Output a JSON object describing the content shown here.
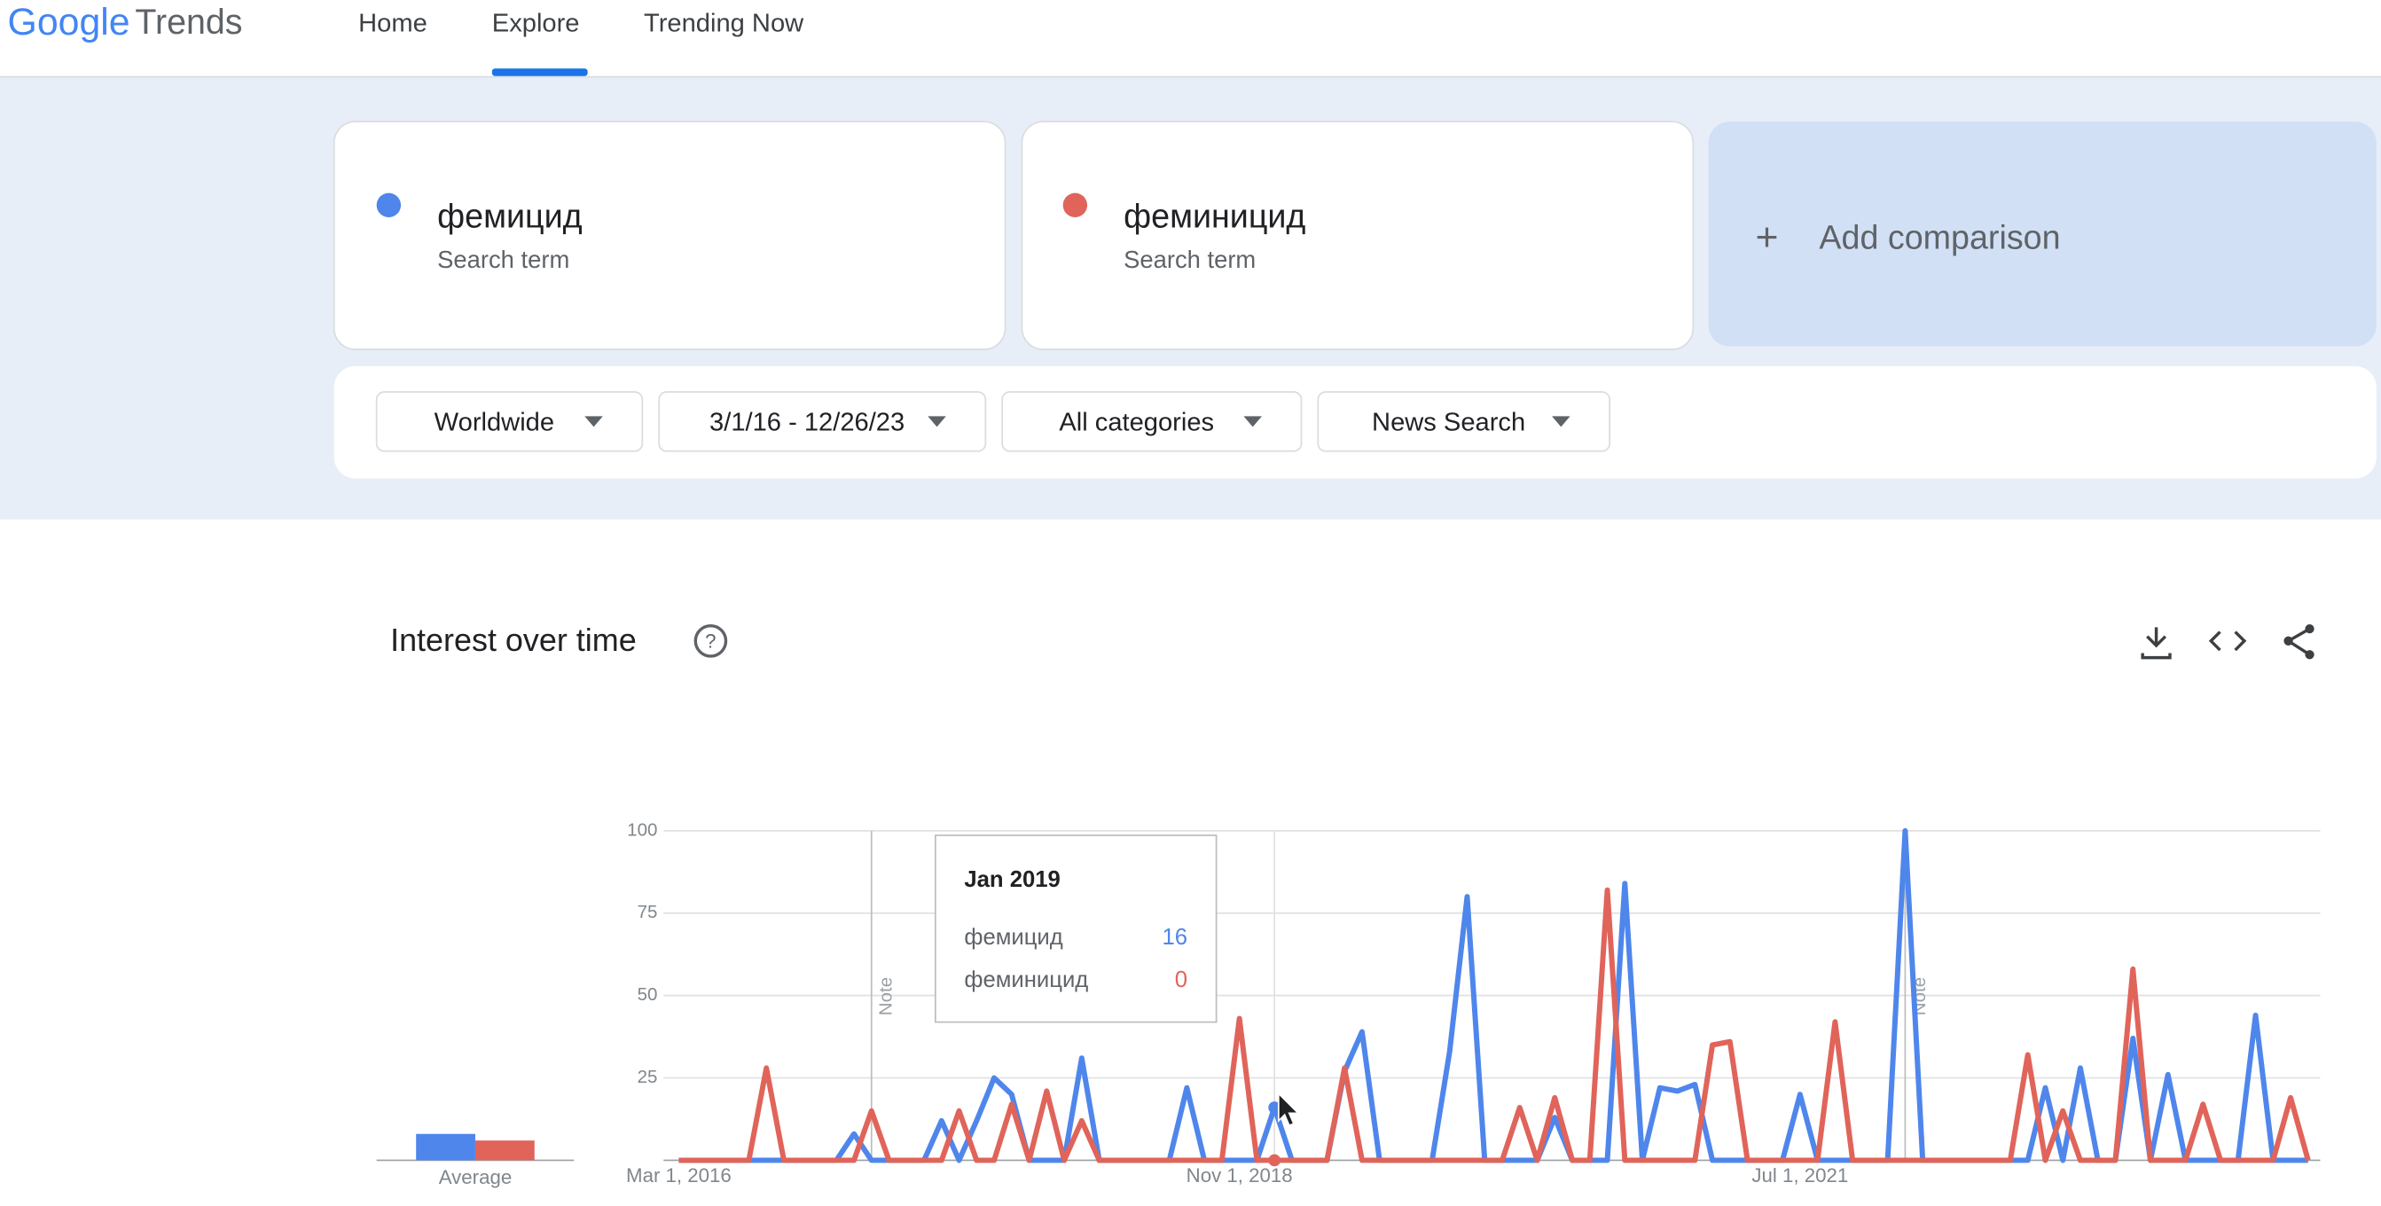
{
  "header": {
    "logo_google": "Google",
    "logo_trends": "Trends",
    "nav": [
      "Home",
      "Explore",
      "Trending Now"
    ]
  },
  "search_terms": [
    {
      "term": "фемицид",
      "type": "Search term"
    },
    {
      "term": "феминицид",
      "type": "Search term"
    }
  ],
  "add_comparison": "Add comparison",
  "filters": [
    "Worldwide",
    "3/1/16 - 12/26/23",
    "All categories",
    "News Search"
  ],
  "chart_data": {
    "type": "line",
    "title": "Interest over time",
    "categories": [
      "Mar 2016",
      "Apr 2016",
      "May 2016",
      "Jun 2016",
      "Jul 2016",
      "Aug 2016",
      "Sep 2016",
      "Oct 2016",
      "Nov 2016",
      "Dec 2016",
      "Jan 2017",
      "Feb 2017",
      "Mar 2017",
      "Apr 2017",
      "May 2017",
      "Jun 2017",
      "Jul 2017",
      "Aug 2017",
      "Sep 2017",
      "Oct 2017",
      "Nov 2017",
      "Dec 2017",
      "Jan 2018",
      "Feb 2018",
      "Mar 2018",
      "Apr 2018",
      "May 2018",
      "Jun 2018",
      "Jul 2018",
      "Aug 2018",
      "Sep 2018",
      "Oct 2018",
      "Nov 2018",
      "Dec 2018",
      "Jan 2019",
      "Feb 2019",
      "Mar 2019",
      "Apr 2019",
      "May 2019",
      "Jun 2019",
      "Jul 2019",
      "Aug 2019",
      "Sep 2019",
      "Oct 2019",
      "Nov 2019",
      "Dec 2019",
      "Jan 2020",
      "Feb 2020",
      "Mar 2020",
      "Apr 2020",
      "May 2020",
      "Jun 2020",
      "Jul 2020",
      "Aug 2020",
      "Sep 2020",
      "Oct 2020",
      "Nov 2020",
      "Dec 2020",
      "Jan 2021",
      "Feb 2021",
      "Mar 2021",
      "Apr 2021",
      "May 2021",
      "Jun 2021",
      "Jul 2021",
      "Aug 2021",
      "Sep 2021",
      "Oct 2021",
      "Nov 2021",
      "Dec 2021",
      "Jan 2022",
      "Feb 2022",
      "Mar 2022",
      "Apr 2022",
      "May 2022",
      "Jun 2022",
      "Jul 2022",
      "Aug 2022",
      "Sep 2022",
      "Oct 2022",
      "Nov 2022",
      "Dec 2022",
      "Jan 2023",
      "Feb 2023",
      "Mar 2023",
      "Apr 2023",
      "May 2023",
      "Jun 2023",
      "Jul 2023",
      "Aug 2023",
      "Sep 2023",
      "Oct 2023",
      "Nov 2023",
      "Dec 2023"
    ],
    "xticks": [
      {
        "value": 0,
        "label": "Mar 1, 2016"
      },
      {
        "value": 32,
        "label": "Nov 1, 2018"
      },
      {
        "value": 64,
        "label": "Jul 1, 2021"
      }
    ],
    "ylim": [
      0,
      100
    ],
    "yticks": [
      25,
      50,
      75,
      100
    ],
    "grid": true,
    "series": [
      {
        "name": "фемицид",
        "color": "#4f86ec",
        "values": [
          0,
          0,
          0,
          0,
          0,
          0,
          0,
          0,
          0,
          0,
          8,
          0,
          0,
          0,
          0,
          12,
          0,
          12,
          25,
          20,
          0,
          0,
          0,
          31,
          0,
          0,
          0,
          0,
          0,
          22,
          0,
          0,
          0,
          0,
          16,
          0,
          0,
          0,
          27,
          39,
          0,
          0,
          0,
          0,
          33,
          80,
          0,
          0,
          0,
          0,
          13,
          0,
          0,
          0,
          84,
          0,
          22,
          21,
          23,
          0,
          0,
          0,
          0,
          0,
          20,
          0,
          0,
          0,
          0,
          0,
          100,
          0,
          0,
          0,
          0,
          0,
          0,
          0,
          22,
          0,
          28,
          0,
          0,
          37,
          0,
          26,
          0,
          0,
          0,
          0,
          44,
          0,
          0,
          0
        ]
      },
      {
        "name": "феминицид",
        "color": "#e0645a",
        "values": [
          0,
          0,
          0,
          0,
          0,
          28,
          0,
          0,
          0,
          0,
          0,
          15,
          0,
          0,
          0,
          0,
          15,
          0,
          0,
          17,
          0,
          21,
          0,
          12,
          0,
          0,
          0,
          0,
          0,
          0,
          0,
          0,
          43,
          0,
          0,
          0,
          0,
          0,
          28,
          0,
          0,
          0,
          0,
          0,
          0,
          0,
          0,
          0,
          16,
          0,
          19,
          0,
          0,
          82,
          0,
          0,
          0,
          0,
          0,
          35,
          36,
          0,
          0,
          0,
          0,
          0,
          42,
          0,
          0,
          0,
          0,
          0,
          0,
          0,
          0,
          0,
          0,
          32,
          0,
          15,
          0,
          0,
          0,
          58,
          0,
          0,
          0,
          17,
          0,
          0,
          0,
          0,
          19,
          0
        ]
      }
    ],
    "average": {
      "label": "Average",
      "values": [
        8,
        6
      ]
    },
    "annotations": [
      {
        "x": "Feb 2017",
        "text": "Note"
      },
      {
        "x": "Jan 2022",
        "text": "Note"
      }
    ],
    "hover": "Jan 2019"
  }
}
